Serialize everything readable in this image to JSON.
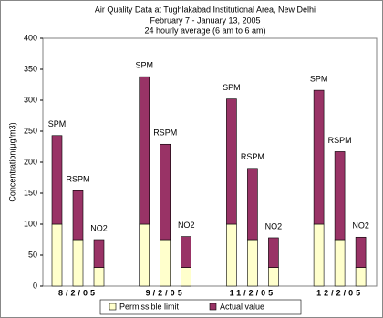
{
  "chart_data": {
    "type": "stacked-bar",
    "title": "Air Quality Data at Tughlakabad Institutional Area, New Delhi",
    "subtitle": [
      "February 7 - January 13, 2005",
      "24 hourly average (6 am to 6 am)"
    ],
    "y_label": "Concentration(μg/m3)",
    "groups": [
      "8/2/05",
      "9/2/05",
      "11/2/05",
      "12/2/05"
    ],
    "categories": [
      "SPM",
      "RSPM",
      "NO2",
      "SPM",
      "RSPM",
      "NO2",
      "SPM",
      "RSPM",
      "NO2",
      "SPM",
      "RSPM",
      "NO2"
    ],
    "series": [
      {
        "name": "Permissible limit",
        "color": "#ffffcc",
        "values": [
          100,
          75,
          30,
          100,
          75,
          30,
          100,
          75,
          30,
          100,
          75,
          30
        ]
      },
      {
        "name": "Actual value",
        "color": "#993366",
        "values": [
          143,
          79,
          45,
          238,
          154,
          50,
          202,
          115,
          48,
          216,
          142,
          49
        ]
      }
    ],
    "ylim": [
      0,
      400
    ],
    "yticks": [
      0,
      50,
      100,
      150,
      200,
      250,
      300,
      350,
      400
    ],
    "legend": "bottom"
  }
}
